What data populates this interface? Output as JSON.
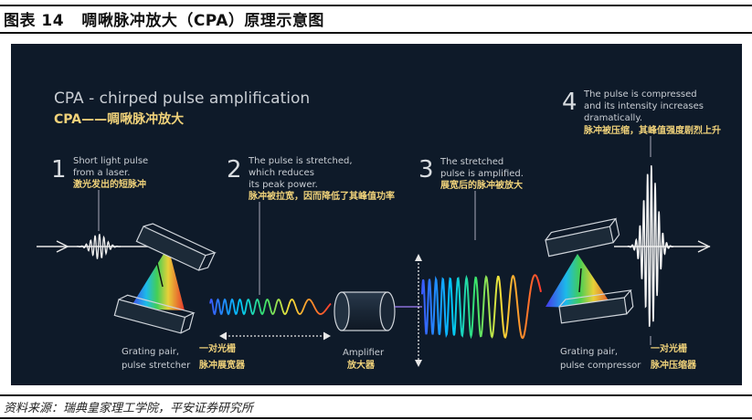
{
  "figure": {
    "title": "图表 14   啁啾脉冲放大（CPA）原理示意图",
    "source": "资料来源：瑞典皇家理工学院，平安证券研究所"
  },
  "diagram": {
    "heading_en": "CPA - chirped pulse amplification",
    "heading_cn": "CPA——啁啾脉冲放大",
    "steps": [
      {
        "num": "1",
        "lines_en": [
          "Short light pulse",
          "from a laser."
        ],
        "line_cn": "激光发出的短脉冲"
      },
      {
        "num": "2",
        "lines_en": [
          "The pulse is stretched,",
          "which reduces",
          "its peak power."
        ],
        "line_cn": "脉冲被拉宽，因而降低了其峰值功率"
      },
      {
        "num": "3",
        "lines_en": [
          "The stretched",
          "pulse is amplified."
        ],
        "line_cn": "展宽后的脉冲被放大"
      },
      {
        "num": "4",
        "lines_en": [
          "The pulse is compressed",
          "and its intensity increases",
          "dramatically."
        ],
        "line_cn": "脉冲被压缩，其峰值强度剧烈上升"
      }
    ],
    "components": {
      "stretcher_en": [
        "Grating pair,",
        "pulse stretcher"
      ],
      "stretcher_cn": [
        "一对光栅",
        "脉冲展宽器"
      ],
      "amplifier_en": "Amplifier",
      "amplifier_cn": "放大器",
      "compressor_en": [
        "Grating pair,",
        "pulse compressor"
      ],
      "compressor_cn": [
        "一对光栅",
        "脉冲压缩器"
      ]
    },
    "colors": {
      "background": "#0e1a29",
      "text": "#c9ced4",
      "accent": "#f0d27a",
      "beam": "#e8e8e8"
    }
  }
}
